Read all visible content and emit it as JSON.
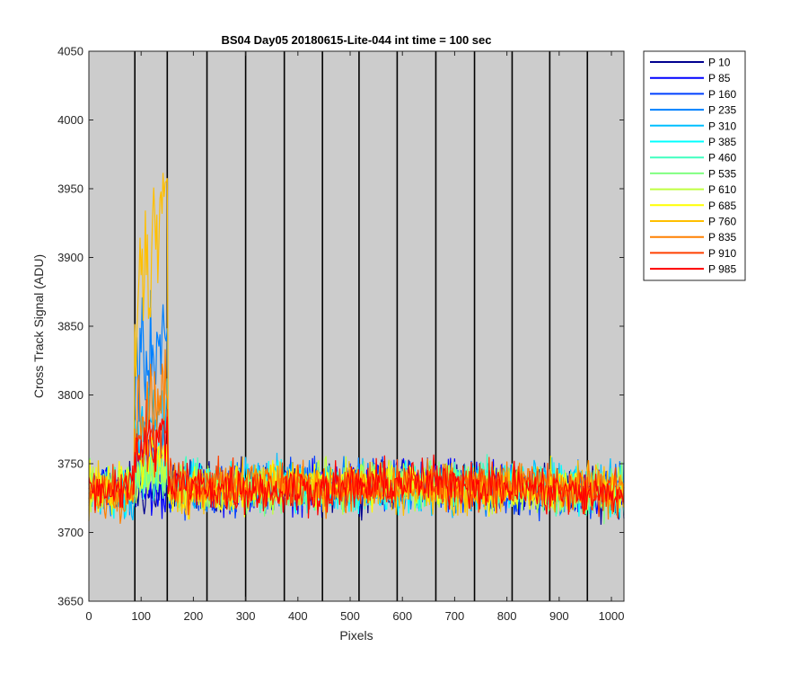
{
  "chart_data": {
    "type": "line",
    "title": "BS04 Day05 20180615-Lite-044 int time = 100 sec",
    "xlabel": "Pixels",
    "ylabel": "Cross Track Signal (ADU)",
    "xlim": [
      0,
      1024
    ],
    "ylim": [
      3650,
      4050
    ],
    "xticks": [
      0,
      100,
      200,
      300,
      400,
      500,
      600,
      700,
      800,
      900,
      1000
    ],
    "yticks": [
      3650,
      3700,
      3750,
      3800,
      3850,
      3900,
      3950,
      4000,
      4050
    ],
    "tick_labels_x": [
      "0",
      "100",
      "200",
      "300",
      "400",
      "500",
      "600",
      "700",
      "800",
      "900",
      "1000"
    ],
    "tick_labels_y": [
      "3650",
      "3700",
      "3750",
      "3800",
      "3850",
      "3900",
      "3950",
      "4000",
      "4050"
    ],
    "background_color": "#cccccc",
    "vertical_markers": [
      88,
      150,
      226,
      300,
      374,
      447,
      517,
      590,
      664,
      738,
      810,
      882,
      954
    ],
    "legend_position": "outside-right",
    "baseline_level": 3730,
    "noise_amplitude": 12,
    "feature_range": [
      88,
      150
    ],
    "series": [
      {
        "name": "P 10",
        "color": "#00008f",
        "feature_level": 3728
      },
      {
        "name": "P 85",
        "color": "#0000ff",
        "feature_level": 3728
      },
      {
        "name": "P 160",
        "color": "#0040ff",
        "feature_level": 3760
      },
      {
        "name": "P 235",
        "color": "#0080ff",
        "feature_level": 3850
      },
      {
        "name": "P 310",
        "color": "#00bfff",
        "feature_level": 3790
      },
      {
        "name": "P 385",
        "color": "#00ffff",
        "feature_level": 3750
      },
      {
        "name": "P 460",
        "color": "#40ffbf",
        "feature_level": 3745
      },
      {
        "name": "P 535",
        "color": "#80ff80",
        "feature_level": 3745
      },
      {
        "name": "P 610",
        "color": "#bfff40",
        "feature_level": 3745
      },
      {
        "name": "P 685",
        "color": "#ffff00",
        "feature_level": 3760
      },
      {
        "name": "P 760",
        "color": "#ffbf00",
        "feature_level": 3930
      },
      {
        "name": "P 835",
        "color": "#ff8000",
        "feature_level": 3805
      },
      {
        "name": "P 910",
        "color": "#ff4000",
        "feature_level": 3775
      },
      {
        "name": "P 985",
        "color": "#ff0000",
        "feature_level": 3770
      }
    ]
  }
}
